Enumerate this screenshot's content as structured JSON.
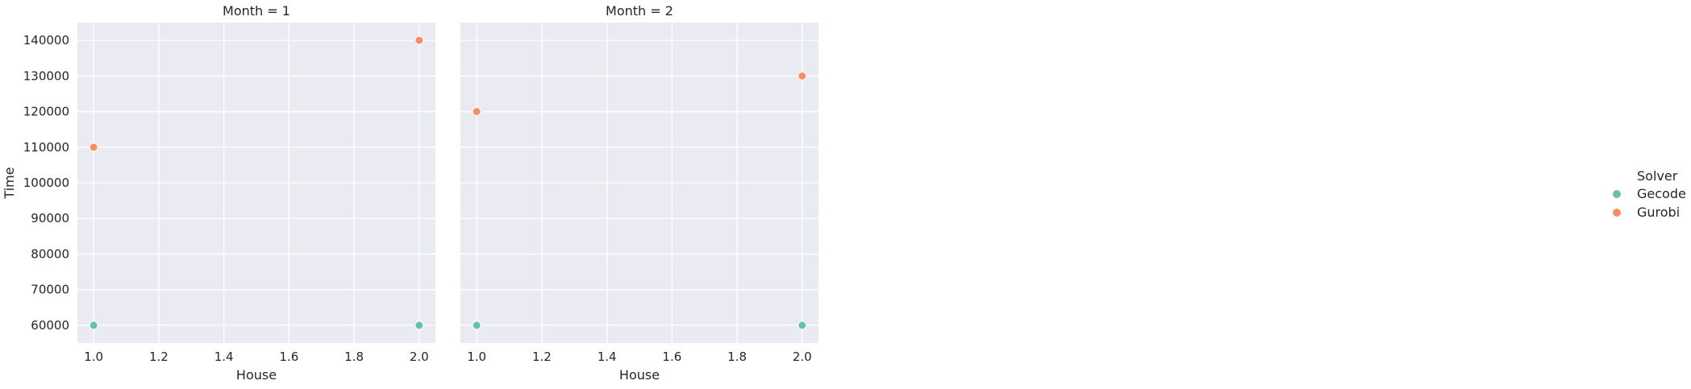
{
  "chart_data": [
    {
      "type": "scatter",
      "title": "Month = 1",
      "xlabel": "House",
      "ylabel": "Time",
      "xlim": [
        0.95,
        2.05
      ],
      "ylim": [
        55000,
        145000
      ],
      "xticks": [
        1.0,
        1.2,
        1.4,
        1.6,
        1.8,
        2.0
      ],
      "xtick_labels": [
        "1.0",
        "1.2",
        "1.4",
        "1.6",
        "1.8",
        "2.0"
      ],
      "yticks": [
        60000,
        70000,
        80000,
        90000,
        100000,
        110000,
        120000,
        130000,
        140000
      ],
      "ytick_labels": [
        "60000",
        "70000",
        "80000",
        "90000",
        "100000",
        "110000",
        "120000",
        "130000",
        "140000"
      ],
      "grid": true,
      "series": [
        {
          "name": "Gecode",
          "points": [
            [
              1.0,
              60000
            ],
            [
              2.0,
              60000
            ]
          ]
        },
        {
          "name": "Gurobi",
          "points": [
            [
              1.0,
              110000
            ],
            [
              2.0,
              140000
            ]
          ]
        }
      ]
    },
    {
      "type": "scatter",
      "title": "Month = 2",
      "xlabel": "House",
      "ylabel": "",
      "xlim": [
        0.95,
        2.05
      ],
      "ylim": [
        55000,
        145000
      ],
      "xticks": [
        1.0,
        1.2,
        1.4,
        1.6,
        1.8,
        2.0
      ],
      "xtick_labels": [
        "1.0",
        "1.2",
        "1.4",
        "1.6",
        "1.8",
        "2.0"
      ],
      "grid": true,
      "series": [
        {
          "name": "Gecode",
          "points": [
            [
              1.0,
              60000
            ],
            [
              2.0,
              60000
            ]
          ]
        },
        {
          "name": "Gurobi",
          "points": [
            [
              1.0,
              120000
            ],
            [
              2.0,
              130000
            ]
          ]
        }
      ]
    }
  ],
  "legend": {
    "title": "Solver",
    "placement": "right",
    "entries": [
      {
        "label": "Gecode",
        "color": "#66c2a5"
      },
      {
        "label": "Gurobi",
        "color": "#fc8d62"
      }
    ]
  },
  "colors": {
    "panel_bg": "#eaeaf2",
    "grid": "#ffffff",
    "Gecode": "#66c2a5",
    "Gurobi": "#fc8d62"
  }
}
